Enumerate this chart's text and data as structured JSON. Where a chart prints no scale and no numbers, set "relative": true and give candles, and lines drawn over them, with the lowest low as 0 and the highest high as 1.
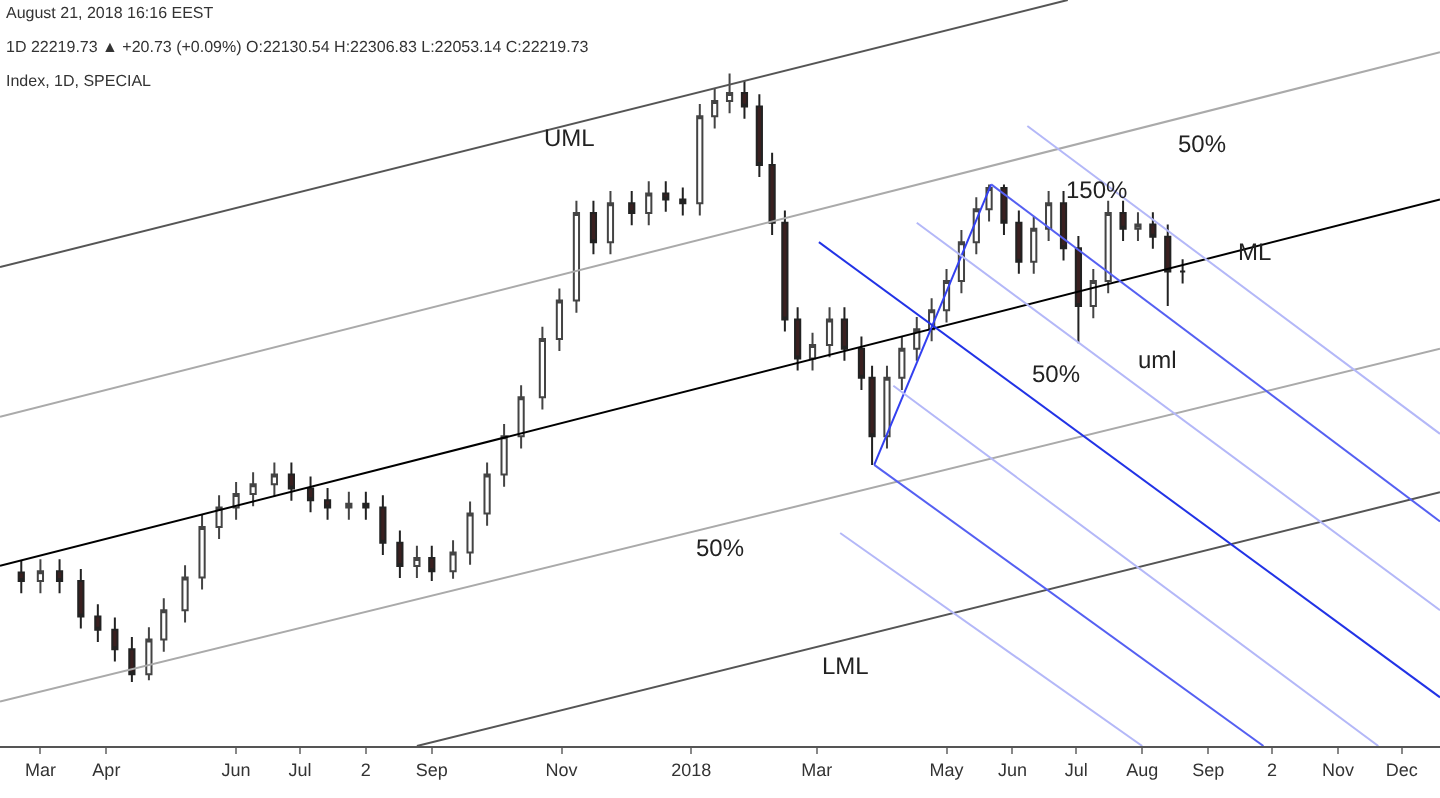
{
  "chart_data": {
    "type": "candlestick",
    "relative": true,
    "x": [
      "2017-02-20",
      "2017-03-01",
      "2017-03-10",
      "2017-03-20",
      "2017-03-28",
      "2017-04-05",
      "2017-04-13",
      "2017-04-21",
      "2017-04-28",
      "2017-05-08",
      "2017-05-16",
      "2017-05-24",
      "2017-06-01",
      "2017-06-09",
      "2017-06-19",
      "2017-06-27",
      "2017-07-06",
      "2017-07-14",
      "2017-07-24",
      "2017-08-01",
      "2017-08-09",
      "2017-08-17",
      "2017-08-25",
      "2017-09-01",
      "2017-09-11",
      "2017-09-19",
      "2017-09-27",
      "2017-10-05",
      "2017-10-13",
      "2017-10-23",
      "2017-10-31",
      "2017-11-08",
      "2017-11-16",
      "2017-11-24",
      "2017-12-04",
      "2017-12-12",
      "2017-12-20",
      "2017-12-28",
      "2018-01-05",
      "2018-01-12",
      "2018-01-19",
      "2018-01-26",
      "2018-02-02",
      "2018-02-08",
      "2018-02-14",
      "2018-02-20",
      "2018-02-27",
      "2018-03-07",
      "2018-03-14",
      "2018-03-22",
      "2018-03-27",
      "2018-04-03",
      "2018-04-10",
      "2018-04-17",
      "2018-04-24",
      "2018-05-01",
      "2018-05-08",
      "2018-05-15",
      "2018-05-21",
      "2018-05-28",
      "2018-06-04",
      "2018-06-11",
      "2018-06-18",
      "2018-06-25",
      "2018-07-02",
      "2018-07-09",
      "2018-07-16",
      "2018-07-23",
      "2018-07-30",
      "2018-08-06",
      "2018-08-13",
      "2018-08-20"
    ],
    "ohlc": [
      [
        0.18,
        0.2,
        0.146,
        0.166
      ],
      [
        0.166,
        0.202,
        0.146,
        0.182
      ],
      [
        0.182,
        0.202,
        0.146,
        0.166
      ],
      [
        0.166,
        0.186,
        0.088,
        0.108
      ],
      [
        0.108,
        0.128,
        0.066,
        0.086
      ],
      [
        0.086,
        0.106,
        0.034,
        0.054
      ],
      [
        0.054,
        0.074,
        0,
        0.013
      ],
      [
        0.013,
        0.09,
        0.003,
        0.07
      ],
      [
        0.07,
        0.138,
        0.05,
        0.118
      ],
      [
        0.118,
        0.192,
        0.098,
        0.172
      ],
      [
        0.172,
        0.275,
        0.152,
        0.255
      ],
      [
        0.255,
        0.307,
        0.235,
        0.287
      ],
      [
        0.287,
        0.329,
        0.267,
        0.309
      ],
      [
        0.309,
        0.345,
        0.289,
        0.325
      ],
      [
        0.325,
        0.361,
        0.305,
        0.341
      ],
      [
        0.341,
        0.361,
        0.298,
        0.318
      ],
      [
        0.318,
        0.338,
        0.279,
        0.299
      ],
      [
        0.299,
        0.319,
        0.267,
        0.287
      ],
      [
        0.287,
        0.313,
        0.267,
        0.293
      ],
      [
        0.293,
        0.313,
        0.267,
        0.287
      ],
      [
        0.287,
        0.307,
        0.209,
        0.229
      ],
      [
        0.229,
        0.249,
        0.171,
        0.191
      ],
      [
        0.191,
        0.224,
        0.171,
        0.204
      ],
      [
        0.204,
        0.224,
        0.166,
        0.182
      ],
      [
        0.182,
        0.233,
        0.17,
        0.213
      ],
      [
        0.213,
        0.297,
        0.193,
        0.277
      ],
      [
        0.277,
        0.361,
        0.257,
        0.341
      ],
      [
        0.341,
        0.424,
        0.321,
        0.404
      ],
      [
        0.404,
        0.488,
        0.384,
        0.468
      ],
      [
        0.468,
        0.584,
        0.448,
        0.564
      ],
      [
        0.564,
        0.647,
        0.544,
        0.627
      ],
      [
        0.627,
        0.791,
        0.607,
        0.771
      ],
      [
        0.771,
        0.791,
        0.703,
        0.723
      ],
      [
        0.723,
        0.807,
        0.703,
        0.787
      ],
      [
        0.787,
        0.807,
        0.751,
        0.771
      ],
      [
        0.771,
        0.823,
        0.751,
        0.803
      ],
      [
        0.803,
        0.823,
        0.773,
        0.793
      ],
      [
        0.793,
        0.813,
        0.767,
        0.787
      ],
      [
        0.787,
        0.95,
        0.767,
        0.93
      ],
      [
        0.93,
        0.975,
        0.91,
        0.955
      ],
      [
        0.955,
        1.0,
        0.935,
        0.968
      ],
      [
        0.968,
        0.988,
        0.926,
        0.946
      ],
      [
        0.946,
        0.966,
        0.83,
        0.85
      ],
      [
        0.85,
        0.87,
        0.735,
        0.755
      ],
      [
        0.755,
        0.775,
        0.576,
        0.596
      ],
      [
        0.596,
        0.616,
        0.512,
        0.532
      ],
      [
        0.532,
        0.574,
        0.512,
        0.554
      ],
      [
        0.554,
        0.616,
        0.534,
        0.596
      ],
      [
        0.596,
        0.616,
        0.528,
        0.548
      ],
      [
        0.548,
        0.568,
        0.48,
        0.5
      ],
      [
        0.5,
        0.52,
        0.357,
        0.404
      ],
      [
        0.404,
        0.52,
        0.384,
        0.5
      ],
      [
        0.5,
        0.568,
        0.48,
        0.548
      ],
      [
        0.548,
        0.6,
        0.528,
        0.58
      ],
      [
        0.58,
        0.631,
        0.56,
        0.611
      ],
      [
        0.611,
        0.679,
        0.591,
        0.659
      ],
      [
        0.659,
        0.743,
        0.639,
        0.723
      ],
      [
        0.723,
        0.797,
        0.703,
        0.777
      ],
      [
        0.777,
        0.818,
        0.757,
        0.812
      ],
      [
        0.812,
        0.818,
        0.735,
        0.755
      ],
      [
        0.755,
        0.775,
        0.671,
        0.691
      ],
      [
        0.691,
        0.765,
        0.671,
        0.745
      ],
      [
        0.745,
        0.807,
        0.725,
        0.787
      ],
      [
        0.787,
        0.807,
        0.693,
        0.713
      ],
      [
        0.713,
        0.733,
        0.557,
        0.618
      ],
      [
        0.618,
        0.679,
        0.598,
        0.659
      ],
      [
        0.659,
        0.791,
        0.639,
        0.771
      ],
      [
        0.771,
        0.791,
        0.725,
        0.745
      ],
      [
        0.745,
        0.772,
        0.725,
        0.752
      ],
      [
        0.752,
        0.772,
        0.712,
        0.732
      ],
      [
        0.732,
        0.752,
        0.618,
        0.675
      ],
      [
        0.675,
        0.695,
        0.655,
        0.675
      ]
    ],
    "series": [
      {
        "type": "line",
        "color": "#000000",
        "x": [
          "2017-02-10",
          "2018-12-19"
        ],
        "values": [
          0.191,
          0.793
        ]
      },
      {
        "type": "line",
        "color": "#555555",
        "x": [
          "2017-02-10",
          "2018-06-27"
        ],
        "values": [
          0.682,
          1.121
        ]
      },
      {
        "type": "line",
        "color": "#aaaaaa",
        "x": [
          "2017-02-10",
          "2018-12-19"
        ],
        "values": [
          0.436,
          1.035
        ]
      },
      {
        "type": "line",
        "color": "#aaaaaa",
        "x": [
          "2017-02-10",
          "2018-12-19"
        ],
        "values": [
          -0.032,
          0.548
        ]
      },
      {
        "type": "line",
        "color": "#555555",
        "x": [
          "2017-08-25",
          "2018-12-19"
        ],
        "values": [
          -0.105,
          0.312
        ]
      },
      {
        "type": "line",
        "color": "#3340f0",
        "x": [
          "2018-03-28",
          "2018-05-22"
        ],
        "values": [
          0.357,
          0.818
        ]
      },
      {
        "type": "line",
        "color": "#2233e6",
        "x": [
          "2018-03-02",
          "2018-12-19"
        ],
        "values": [
          0.723,
          -0.025
        ]
      },
      {
        "type": "line",
        "color": "#5560f2",
        "x": [
          "2018-03-28",
          "2018-09-27"
        ],
        "values": [
          0.357,
          -0.105
        ]
      },
      {
        "type": "line",
        "color": "#5560f2",
        "x": [
          "2018-05-22",
          "2018-12-19"
        ],
        "values": [
          0.818,
          0.264
        ]
      },
      {
        "type": "line",
        "color": "#b4b8f8",
        "x": [
          "2018-04-17",
          "2018-12-19"
        ],
        "values": [
          0.755,
          0.118
        ]
      },
      {
        "type": "line",
        "color": "#b4b8f8",
        "x": [
          "2018-06-08",
          "2018-12-19"
        ],
        "values": [
          0.914,
          0.408
        ]
      },
      {
        "type": "line",
        "color": "#b4b8f8",
        "x": [
          "2018-04-06",
          "2018-11-20"
        ],
        "values": [
          0.487,
          -0.105
        ]
      },
      {
        "type": "line",
        "color": "#b4b8f8",
        "x": [
          "2018-03-12",
          "2018-08-01"
        ],
        "values": [
          0.245,
          -0.105
        ]
      }
    ],
    "xlim": [
      "2017-02-10",
      "2018-12-19"
    ],
    "xticks": [
      {
        "value": "2017-03-01",
        "label": "Mar"
      },
      {
        "value": "2017-04-01",
        "label": "Apr"
      },
      {
        "value": "2017-06-01",
        "label": "Jun"
      },
      {
        "value": "2017-07-01",
        "label": "Jul"
      },
      {
        "value": "2017-08-01",
        "label": "2"
      },
      {
        "value": "2017-09-01",
        "label": "Sep"
      },
      {
        "value": "2017-11-01",
        "label": "Nov"
      },
      {
        "value": "2018-01-01",
        "label": "2018"
      },
      {
        "value": "2018-03-01",
        "label": "Mar"
      },
      {
        "value": "2018-05-01",
        "label": "May"
      },
      {
        "value": "2018-06-01",
        "label": "Jun"
      },
      {
        "value": "2018-07-01",
        "label": "Jul"
      },
      {
        "value": "2018-08-01",
        "label": "Aug"
      },
      {
        "value": "2018-09-01",
        "label": "Sep"
      },
      {
        "value": "2018-10-01",
        "label": "2"
      },
      {
        "value": "2018-11-01",
        "label": "Nov"
      },
      {
        "value": "2018-12-01",
        "label": "Dec"
      }
    ],
    "annotations": [
      "August 21, 2018 16:16 EEST",
      "1D 22219.73 ▲ +20.73 (+0.09%) O:22130.54 H:22306.83 L:22053.14 C:22219.73",
      "Index, 1D, SPECIAL",
      "UML",
      "ML",
      "LML",
      "50%",
      "50%",
      "150%",
      "50%",
      "uml"
    ]
  }
}
